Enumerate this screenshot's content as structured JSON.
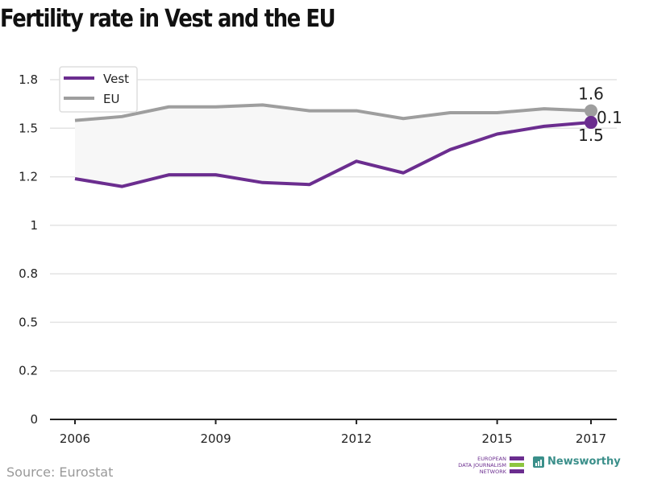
{
  "chart_data": {
    "type": "line",
    "title": "Fertility rate in Vest and the EU",
    "xlabel": "",
    "ylabel": "",
    "x": [
      2006,
      2007,
      2008,
      2009,
      2010,
      2011,
      2012,
      2013,
      2014,
      2015,
      2016,
      2017
    ],
    "x_ticks": [
      2006,
      2009,
      2012,
      2015,
      2017
    ],
    "x_tick_labels": [
      "2006",
      "2009",
      "2012",
      "2015",
      "2017"
    ],
    "y_ticks": [
      0,
      0.25,
      0.5,
      0.75,
      1.0,
      1.25,
      1.5,
      1.75
    ],
    "y_tick_labels": [
      "0",
      "0.2",
      "0.5",
      "0.8",
      "1",
      "1.2",
      "1.5",
      "1.8"
    ],
    "ylim": [
      0,
      1.75
    ],
    "grid": true,
    "legend_position": "top-left",
    "series": [
      {
        "name": "Vest",
        "color": "#6b2d8f",
        "values": [
          1.24,
          1.2,
          1.26,
          1.26,
          1.22,
          1.21,
          1.33,
          1.27,
          1.39,
          1.47,
          1.51,
          1.53
        ],
        "end_label": "1.5"
      },
      {
        "name": "EU",
        "color": "#9e9e9e",
        "values": [
          1.54,
          1.56,
          1.61,
          1.61,
          1.62,
          1.59,
          1.59,
          1.55,
          1.58,
          1.58,
          1.6,
          1.59
        ],
        "end_label": "1.6"
      }
    ],
    "difference_label": "0.1",
    "fill_between": "#f7f7f7"
  },
  "footer": {
    "source": "Source: Eurostat",
    "edjnet_lines": [
      "EUROPEAN",
      "DATA JOURNALISM",
      "NETWORK"
    ],
    "newsworthy": "Newsworthy"
  }
}
